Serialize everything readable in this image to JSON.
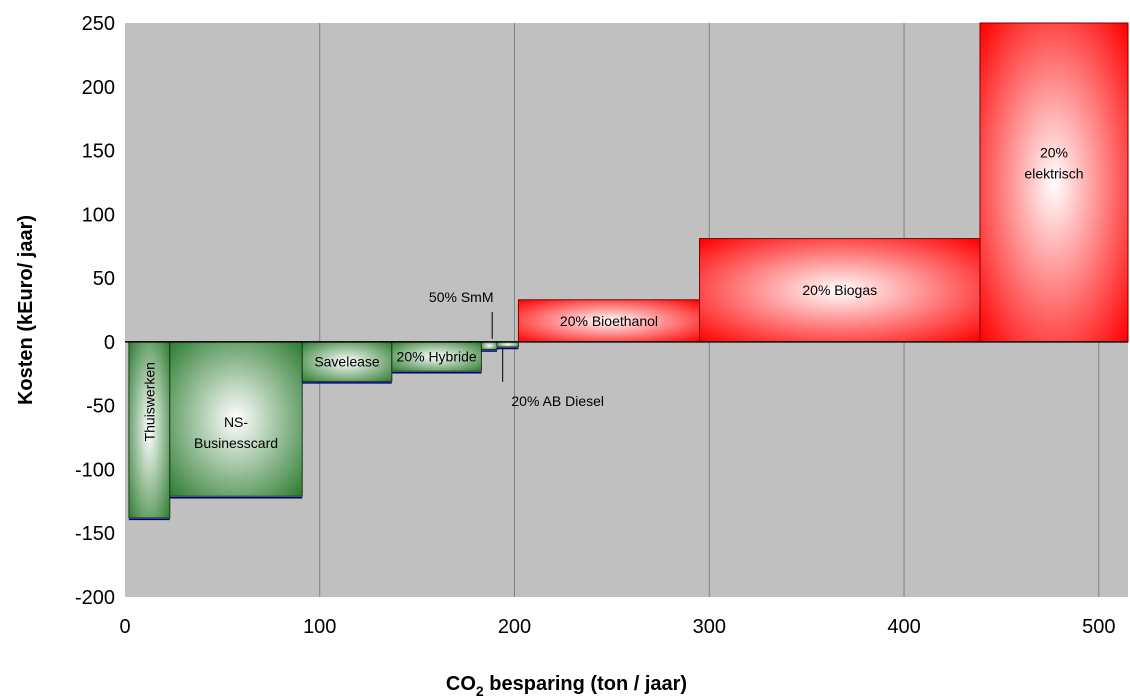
{
  "chart_data": {
    "type": "bar",
    "title": "",
    "xlabel": {
      "main": "CO",
      "sub": "2",
      "rest": " besparing (ton / jaar)"
    },
    "ylabel": "Kosten (kEuro/ jaar)",
    "xlim": [
      0,
      515
    ],
    "ylim": [
      -200,
      250
    ],
    "xticks": [
      0,
      100,
      200,
      300,
      400,
      500
    ],
    "yticks": [
      -200,
      -150,
      -100,
      -50,
      0,
      50,
      100,
      150,
      200,
      250
    ],
    "grid": true,
    "colors": {
      "plot_bg": "#c0c0c0",
      "negative_dark": "#2e7d32",
      "negative_light": "#ffffff",
      "positive_dark": "#ff0000",
      "positive_light": "#ffffff",
      "gridline": "#808080"
    },
    "bars": [
      {
        "label": "Thuiswerken",
        "x0": 2,
        "x1": 23,
        "y": -138,
        "label_rotated": true
      },
      {
        "label": "NS-\nBusinesscard",
        "x0": 23,
        "x1": 91,
        "y": -121
      },
      {
        "label": "Savelease",
        "x0": 91,
        "x1": 137,
        "y": -31
      },
      {
        "label": "20% Hybride",
        "x0": 137,
        "x1": 183,
        "y": -23
      },
      {
        "label": "50% SmM",
        "x0": 183,
        "x1": 191,
        "y": -6,
        "callout": "above"
      },
      {
        "label": "20% AB Diesel",
        "x0": 191,
        "x1": 202,
        "y": -4,
        "callout": "below"
      },
      {
        "label": "20% Bioethanol",
        "x0": 202,
        "x1": 295,
        "y": 33
      },
      {
        "label": "20% Biogas",
        "x0": 295,
        "x1": 439,
        "y": 81
      },
      {
        "label": "20%\nelektrisch",
        "x0": 439,
        "x1": 515,
        "y": 250
      }
    ]
  }
}
